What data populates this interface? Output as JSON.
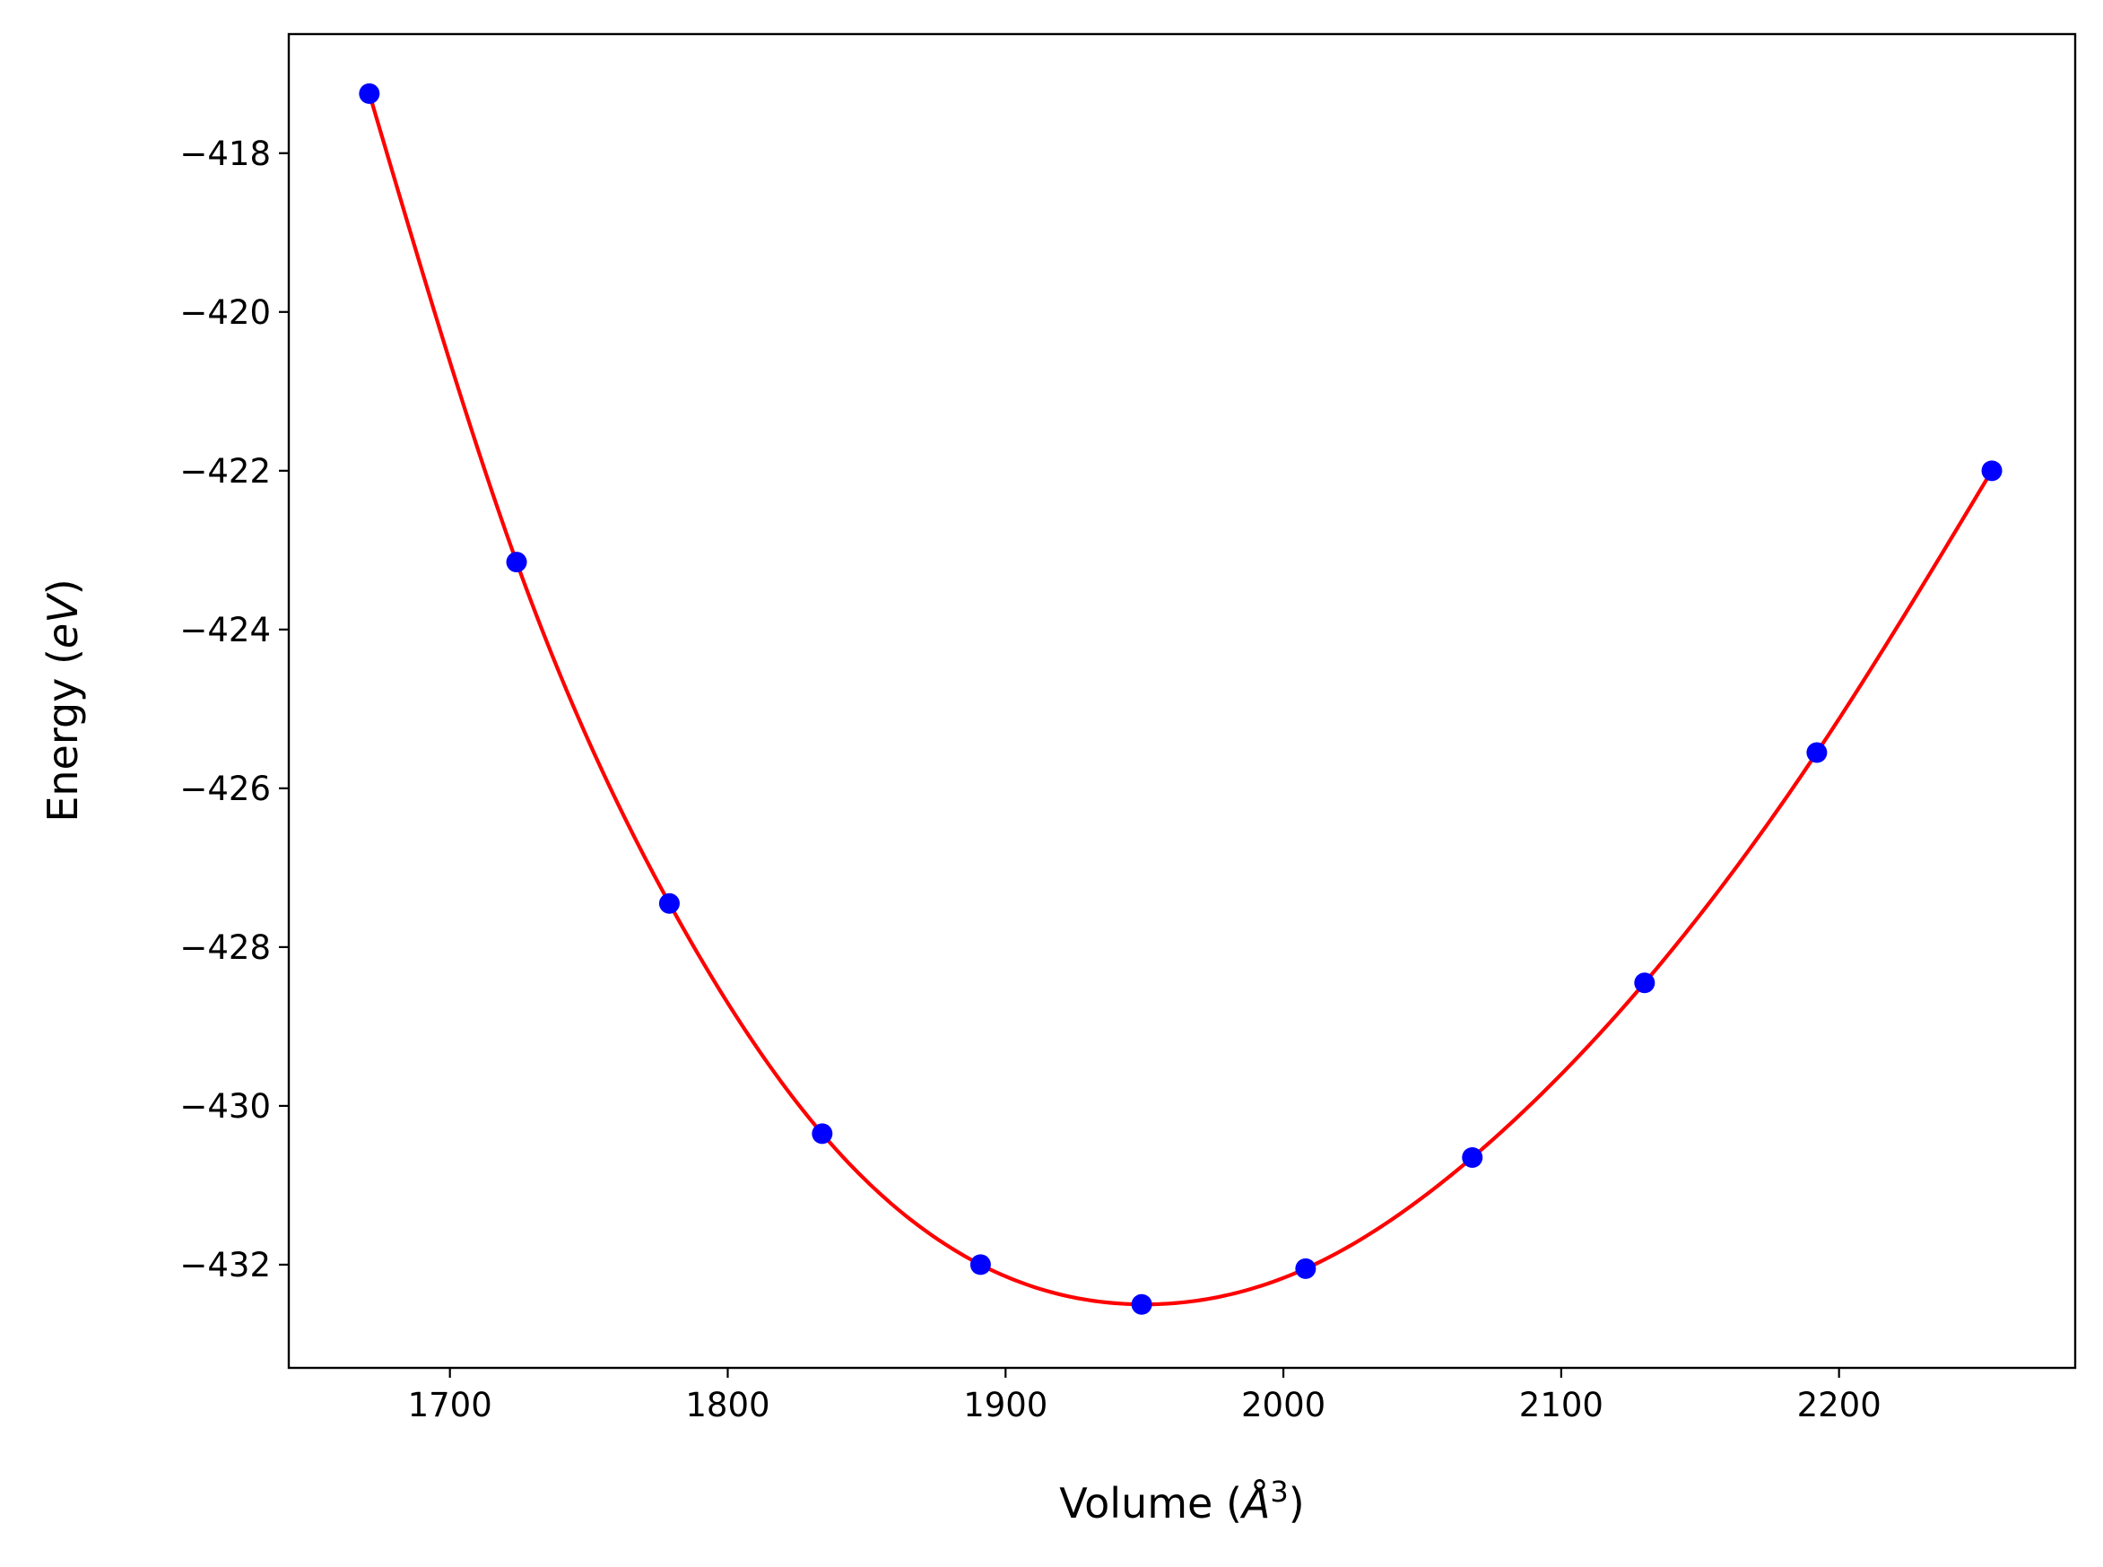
{
  "chart_data": {
    "type": "scatter",
    "title": "",
    "xlabel": "Volume",
    "xlabel_unit_base": "Å",
    "xlabel_unit_exp": "3",
    "ylabel": "Energy",
    "ylabel_unit": "eV",
    "xlim": [
      1642,
      2285
    ],
    "ylim": [
      -433.3,
      -416.5
    ],
    "x_ticks": [
      1700,
      1800,
      1900,
      2000,
      2100,
      2200
    ],
    "y_ticks": [
      -418,
      -420,
      -422,
      -424,
      -426,
      -428,
      -430,
      -432
    ],
    "x_tick_labels": [
      "1700",
      "1800",
      "1900",
      "2000",
      "2100",
      "2200"
    ],
    "y_tick_labels": [
      "−418",
      "−420",
      "−422",
      "−424",
      "−426",
      "−428",
      "−430",
      "−432"
    ],
    "grid": false,
    "legend": "none",
    "series": [
      {
        "kind": "scatter",
        "color": "#0000ff",
        "x": [
          1671,
          1724,
          1779,
          1834,
          1891,
          1949,
          2008,
          2068,
          2130,
          2192,
          2255
        ],
        "y": [
          -417.25,
          -423.15,
          -427.45,
          -430.35,
          -432.0,
          -432.5,
          -432.05,
          -430.65,
          -428.45,
          -425.55,
          -422.0
        ]
      },
      {
        "kind": "fit-line",
        "color": "#ff0000",
        "x": [
          1671,
          1724,
          1779,
          1834,
          1891,
          1949,
          2008,
          2068,
          2130,
          2192,
          2255
        ],
        "y": [
          -417.25,
          -423.15,
          -427.45,
          -430.35,
          -432.0,
          -432.5,
          -432.05,
          -430.65,
          -428.45,
          -425.55,
          -422.0
        ]
      }
    ]
  }
}
